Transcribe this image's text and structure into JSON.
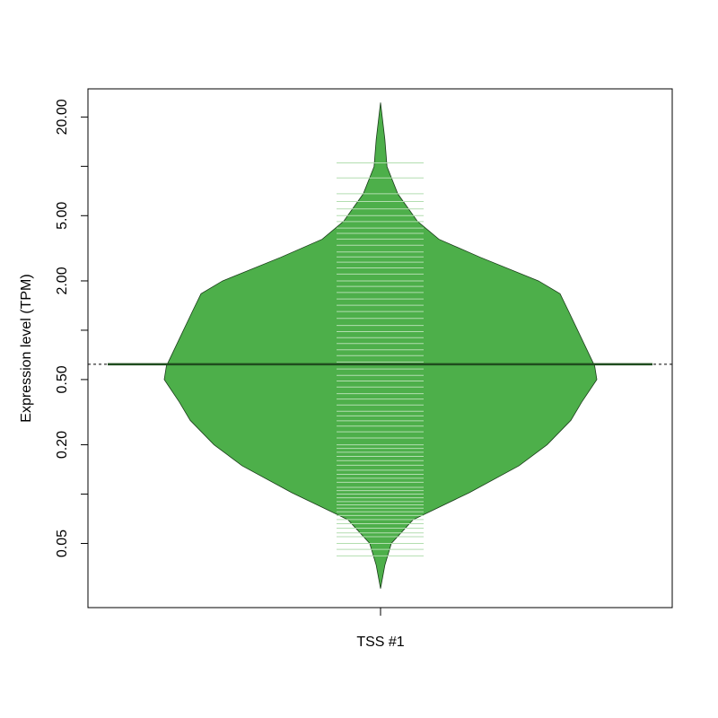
{
  "chart_data": {
    "type": "beanplot",
    "y_label": "Expression level (TPM)",
    "categories": [
      "TSS #1"
    ],
    "log_y": true,
    "ylim": [
      0.0203,
      29.7
    ],
    "yticks": [
      {
        "value": 0.05,
        "label": "0.05"
      },
      {
        "value": 0.1,
        "label": null
      },
      {
        "value": 0.2,
        "label": "0.20"
      },
      {
        "value": 0.5,
        "label": "0.50"
      },
      {
        "value": 1,
        "label": null
      },
      {
        "value": 2,
        "label": "2.00"
      },
      {
        "value": 5,
        "label": "5.00"
      },
      {
        "value": 10,
        "label": null
      },
      {
        "value": 20,
        "label": "20.00"
      }
    ],
    "color": "#4daf4a",
    "beanline_color": "#b3deb0",
    "mean_color": "#1f4d1e",
    "mean": 0.62,
    "density": {
      "y": [
        0.0265,
        0.0368,
        0.05,
        0.0697,
        0.102,
        0.149,
        0.2,
        0.282,
        0.364,
        0.5,
        0.605,
        0.887,
        1.3,
        1.67,
        2.0,
        2.79,
        3.59,
        4.63,
        6.79,
        9.94,
        14.6,
        24.5
      ],
      "width": [
        0,
        0.02,
        0.05,
        0.15,
        0.41,
        0.64,
        0.77,
        0.88,
        0.93,
        1,
        0.99,
        0.93,
        0.87,
        0.83,
        0.73,
        0.46,
        0.27,
        0.17,
        0.08,
        0.03,
        0.02,
        0
      ]
    },
    "beanlines": [
      0.042,
      0.046,
      0.05,
      0.055,
      0.058,
      0.062,
      0.066,
      0.07,
      0.074,
      0.078,
      0.082,
      0.086,
      0.09,
      0.095,
      0.1,
      0.105,
      0.11,
      0.118,
      0.125,
      0.132,
      0.14,
      0.15,
      0.16,
      0.17,
      0.18,
      0.19,
      0.2,
      0.22,
      0.24,
      0.26,
      0.28,
      0.3,
      0.32,
      0.35,
      0.38,
      0.41,
      0.45,
      0.49,
      0.53,
      0.58,
      0.64,
      0.7,
      0.76,
      0.83,
      0.9,
      0.98,
      1.07,
      1.18,
      1.3,
      1.42,
      1.55,
      1.7,
      1.85,
      2.0,
      2.2,
      2.4,
      2.6,
      2.8,
      3.0,
      3.3,
      3.6,
      3.9,
      4.2,
      4.6,
      5.0,
      5.5,
      6.1,
      6.8,
      8.5,
      10.5
    ]
  }
}
